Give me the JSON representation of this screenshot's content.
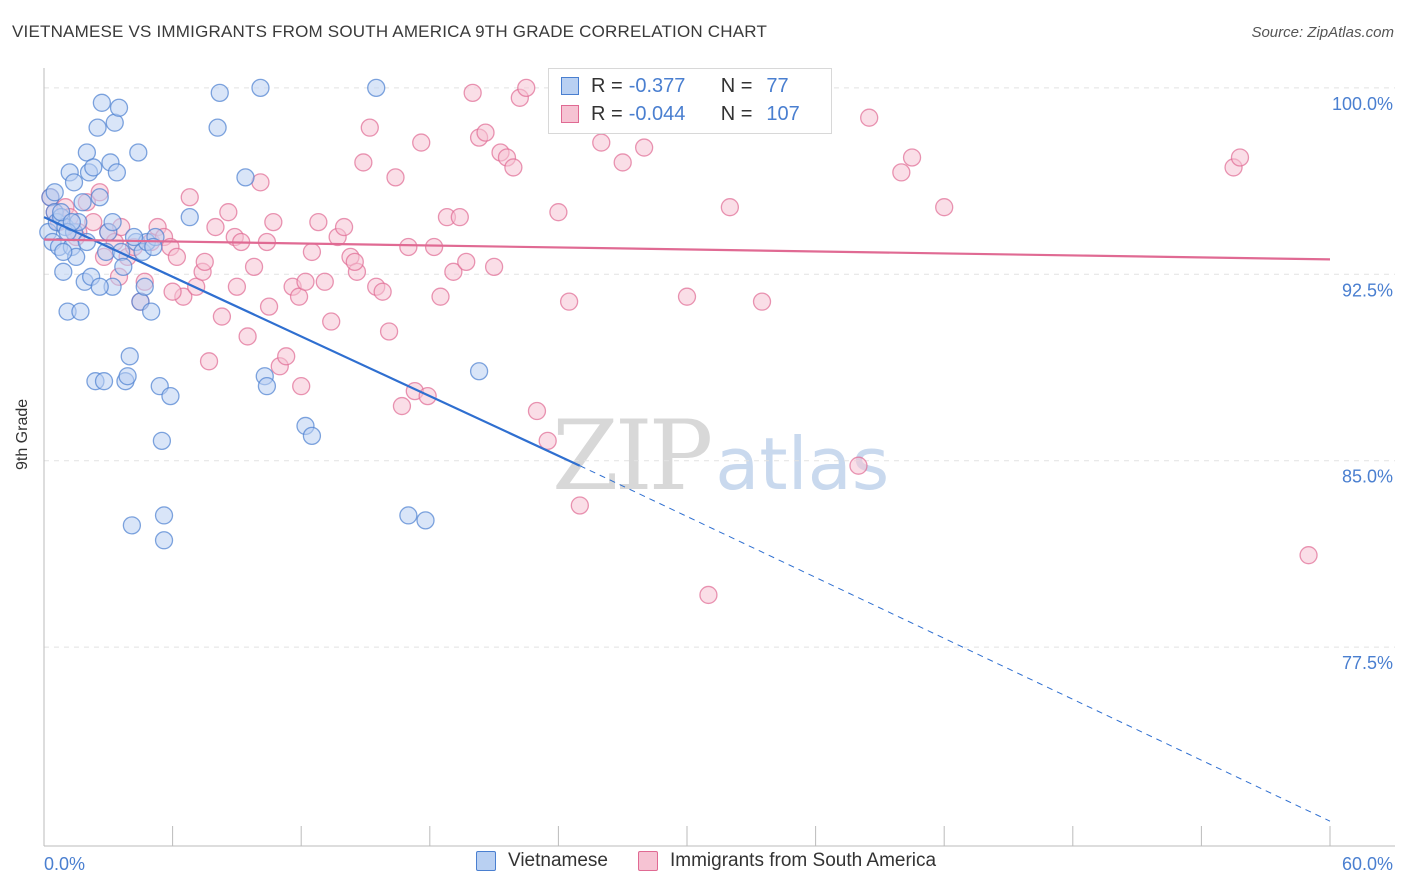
{
  "title": "VIETNAMESE VS IMMIGRANTS FROM SOUTH AMERICA 9TH GRADE CORRELATION CHART",
  "source": "Source: ZipAtlas.com",
  "watermark": {
    "zip": "ZIP",
    "atlas": "atlas"
  },
  "legend": {
    "rows": [
      {
        "r_label": "R =",
        "r_value": "-0.377",
        "n_label": "N =",
        "n_value": "77"
      },
      {
        "r_label": "R =",
        "r_value": "-0.044",
        "n_label": "N =",
        "n_value": "107"
      }
    ]
  },
  "chart_data": {
    "type": "scatter",
    "xlabel": "",
    "ylabel": "9th Grade",
    "xlim": [
      0,
      60
    ],
    "ylim": [
      69.5,
      100.8
    ],
    "x_tick_labels": [
      "0.0%",
      "60.0%"
    ],
    "y_ticks": [
      77.5,
      85.0,
      92.5,
      100.0
    ],
    "y_tick_labels": [
      "77.5%",
      "85.0%",
      "92.5%",
      "100.0%"
    ],
    "grid": "horizontal dashed",
    "legend_position": "bottom-center",
    "colors": {
      "vietnamese": "#4a7fd0",
      "vietnamese_fill": "#b9d0f2",
      "south_america": "#e06a93",
      "south_america_fill": "#f6c3d3"
    },
    "series": [
      {
        "name": "Vietnamese",
        "trend": {
          "x0": 0,
          "y0": 94.8,
          "x1": 25,
          "y1": 84.8,
          "dashed_to_x": 60,
          "dashed_to_y": 70.5
        },
        "points": [
          [
            0.2,
            94.2
          ],
          [
            0.3,
            95.6
          ],
          [
            0.4,
            93.8
          ],
          [
            0.5,
            95.0
          ],
          [
            0.6,
            94.6
          ],
          [
            0.7,
            93.6
          ],
          [
            0.8,
            94.8
          ],
          [
            0.9,
            92.6
          ],
          [
            1.0,
            94.4
          ],
          [
            1.1,
            91.0
          ],
          [
            1.2,
            96.6
          ],
          [
            1.3,
            93.6
          ],
          [
            1.4,
            94.2
          ],
          [
            1.5,
            93.2
          ],
          [
            1.6,
            94.6
          ],
          [
            1.7,
            91.0
          ],
          [
            1.8,
            95.4
          ],
          [
            1.9,
            92.2
          ],
          [
            2.0,
            97.4
          ],
          [
            2.1,
            96.6
          ],
          [
            2.2,
            92.4
          ],
          [
            2.3,
            96.8
          ],
          [
            2.4,
            88.2
          ],
          [
            2.5,
            98.4
          ],
          [
            2.6,
            95.6
          ],
          [
            2.7,
            99.4
          ],
          [
            2.8,
            88.2
          ],
          [
            2.9,
            93.4
          ],
          [
            3.0,
            94.2
          ],
          [
            3.1,
            97.0
          ],
          [
            3.2,
            92.0
          ],
          [
            3.3,
            98.6
          ],
          [
            3.4,
            96.6
          ],
          [
            3.5,
            99.2
          ],
          [
            3.6,
            93.4
          ],
          [
            3.7,
            92.8
          ],
          [
            3.8,
            88.2
          ],
          [
            3.9,
            88.4
          ],
          [
            4.0,
            89.2
          ],
          [
            4.1,
            82.4
          ],
          [
            4.3,
            93.8
          ],
          [
            4.4,
            97.4
          ],
          [
            4.5,
            91.4
          ],
          [
            4.6,
            93.4
          ],
          [
            4.7,
            92.0
          ],
          [
            4.8,
            93.8
          ],
          [
            5.0,
            91.0
          ],
          [
            5.2,
            94.0
          ],
          [
            5.4,
            88.0
          ],
          [
            5.5,
            85.8
          ],
          [
            5.6,
            82.8
          ],
          [
            5.6,
            81.8
          ],
          [
            5.9,
            87.6
          ],
          [
            6.8,
            94.8
          ],
          [
            8.1,
            98.4
          ],
          [
            8.2,
            99.8
          ],
          [
            9.4,
            96.4
          ],
          [
            10.1,
            100.0
          ],
          [
            10.3,
            88.4
          ],
          [
            10.4,
            88.0
          ],
          [
            12.2,
            86.4
          ],
          [
            12.5,
            86.0
          ],
          [
            15.5,
            100.0
          ],
          [
            17.0,
            82.8
          ],
          [
            17.8,
            82.6
          ],
          [
            20.3,
            88.6
          ],
          [
            0.5,
            95.8
          ],
          [
            0.8,
            95.0
          ],
          [
            1.1,
            94.2
          ],
          [
            1.4,
            96.2
          ],
          [
            2.0,
            93.8
          ],
          [
            3.2,
            94.6
          ],
          [
            4.2,
            94.0
          ],
          [
            5.1,
            93.6
          ],
          [
            1.3,
            94.6
          ],
          [
            2.6,
            92.0
          ],
          [
            0.9,
            93.4
          ]
        ]
      },
      {
        "name": "Immigrants from South America",
        "trend": {
          "x0": 0,
          "y0": 93.9,
          "x1": 60,
          "y1": 93.1
        },
        "points": [
          [
            0.3,
            95.6
          ],
          [
            0.5,
            95.0
          ],
          [
            0.7,
            94.6
          ],
          [
            1.0,
            95.2
          ],
          [
            1.2,
            94.8
          ],
          [
            1.6,
            94.2
          ],
          [
            2.0,
            95.4
          ],
          [
            2.3,
            94.6
          ],
          [
            2.6,
            95.8
          ],
          [
            3.0,
            94.2
          ],
          [
            3.3,
            93.8
          ],
          [
            3.6,
            94.4
          ],
          [
            3.9,
            93.2
          ],
          [
            4.2,
            93.6
          ],
          [
            4.5,
            91.4
          ],
          [
            4.7,
            92.2
          ],
          [
            5.0,
            93.8
          ],
          [
            5.3,
            94.4
          ],
          [
            5.6,
            94.0
          ],
          [
            5.9,
            93.6
          ],
          [
            6.2,
            93.2
          ],
          [
            6.5,
            91.6
          ],
          [
            6.8,
            95.6
          ],
          [
            7.1,
            92.0
          ],
          [
            7.4,
            92.6
          ],
          [
            7.7,
            89.0
          ],
          [
            8.0,
            94.4
          ],
          [
            8.3,
            90.8
          ],
          [
            8.6,
            95.0
          ],
          [
            8.9,
            94.0
          ],
          [
            9.2,
            93.8
          ],
          [
            9.5,
            90.0
          ],
          [
            9.8,
            92.8
          ],
          [
            10.1,
            96.2
          ],
          [
            10.4,
            93.8
          ],
          [
            10.7,
            94.6
          ],
          [
            11.0,
            88.8
          ],
          [
            11.3,
            89.2
          ],
          [
            11.6,
            92.0
          ],
          [
            11.9,
            91.6
          ],
          [
            12.2,
            92.2
          ],
          [
            12.5,
            93.4
          ],
          [
            12.8,
            94.6
          ],
          [
            13.1,
            92.2
          ],
          [
            13.4,
            90.6
          ],
          [
            13.7,
            94.0
          ],
          [
            14.0,
            94.4
          ],
          [
            14.3,
            93.2
          ],
          [
            14.6,
            92.6
          ],
          [
            14.9,
            97.0
          ],
          [
            15.2,
            98.4
          ],
          [
            15.5,
            92.0
          ],
          [
            15.8,
            91.8
          ],
          [
            16.1,
            90.2
          ],
          [
            16.4,
            96.4
          ],
          [
            16.7,
            87.2
          ],
          [
            17.0,
            93.6
          ],
          [
            17.3,
            87.8
          ],
          [
            17.6,
            97.8
          ],
          [
            17.9,
            87.6
          ],
          [
            18.2,
            93.6
          ],
          [
            18.5,
            91.6
          ],
          [
            18.8,
            94.8
          ],
          [
            19.1,
            92.6
          ],
          [
            19.4,
            94.8
          ],
          [
            19.7,
            93.0
          ],
          [
            20.0,
            99.8
          ],
          [
            20.3,
            98.0
          ],
          [
            20.6,
            98.2
          ],
          [
            21.0,
            92.8
          ],
          [
            21.3,
            97.4
          ],
          [
            21.6,
            97.2
          ],
          [
            21.9,
            96.8
          ],
          [
            22.2,
            99.6
          ],
          [
            22.5,
            100.0
          ],
          [
            23.0,
            87.0
          ],
          [
            23.5,
            85.8
          ],
          [
            24.0,
            95.0
          ],
          [
            24.5,
            91.4
          ],
          [
            25.0,
            83.2
          ],
          [
            26.0,
            97.8
          ],
          [
            26.5,
            100.0
          ],
          [
            27.0,
            97.0
          ],
          [
            27.5,
            99.4
          ],
          [
            28.0,
            97.6
          ],
          [
            29.0,
            99.6
          ],
          [
            30.0,
            91.6
          ],
          [
            31.0,
            79.6
          ],
          [
            32.0,
            95.2
          ],
          [
            33.5,
            91.4
          ],
          [
            38.0,
            84.8
          ],
          [
            38.5,
            98.8
          ],
          [
            40.0,
            96.6
          ],
          [
            40.5,
            97.2
          ],
          [
            42.0,
            95.2
          ],
          [
            55.5,
            96.8
          ],
          [
            55.8,
            97.2
          ],
          [
            59.0,
            81.2
          ],
          [
            1.5,
            94.0
          ],
          [
            2.8,
            93.2
          ],
          [
            3.5,
            92.4
          ],
          [
            6.0,
            91.8
          ],
          [
            7.5,
            93.0
          ],
          [
            9.0,
            92.0
          ],
          [
            10.5,
            91.2
          ],
          [
            12.0,
            88.0
          ],
          [
            14.5,
            93.0
          ]
        ]
      }
    ]
  }
}
